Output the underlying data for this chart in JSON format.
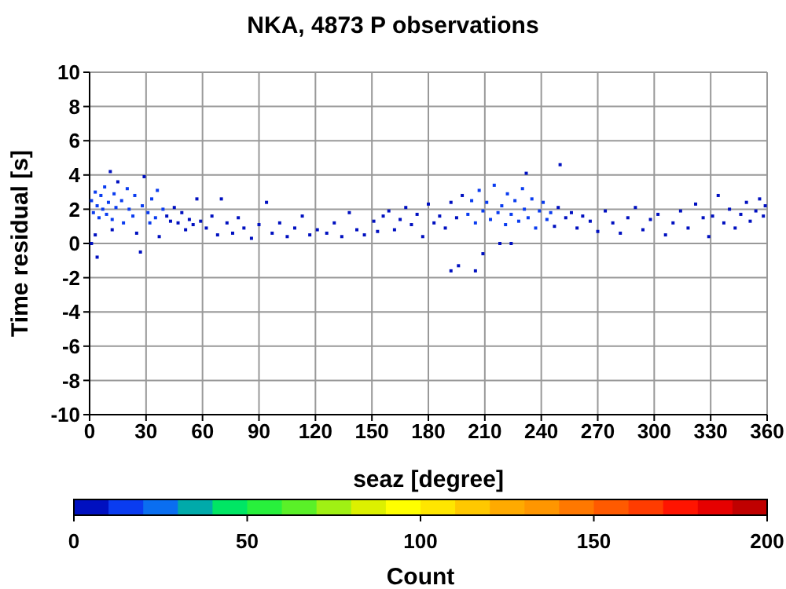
{
  "chart_data": {
    "type": "scatter",
    "title": "NKA, 4873 P observations",
    "xlabel": "seaz [degree]",
    "ylabel": "Time residual [s]",
    "clabel": "Count",
    "x": [
      1,
      2,
      3,
      4,
      5,
      6,
      7,
      8,
      9,
      10,
      11,
      12,
      13,
      14,
      3,
      4,
      1,
      15,
      12,
      17,
      18,
      20,
      21,
      23,
      24,
      25,
      27,
      28,
      29,
      31,
      32,
      33,
      35,
      36,
      37,
      39,
      41,
      43,
      45,
      47,
      49,
      51,
      53,
      55,
      57,
      59,
      62,
      65,
      68,
      70,
      73,
      76,
      79,
      82,
      86,
      90,
      94,
      97,
      101,
      105,
      109,
      113,
      117,
      121,
      126,
      130,
      134,
      138,
      142,
      146,
      151,
      153,
      156,
      159,
      162,
      165,
      168,
      171,
      174,
      177,
      180,
      183,
      186,
      189,
      192,
      192,
      196,
      195,
      198,
      201,
      203,
      205,
      205,
      207,
      209,
      209,
      211,
      213,
      215,
      217,
      218,
      219,
      221,
      222,
      224,
      224,
      226,
      228,
      230,
      231,
      232,
      233,
      235,
      237,
      239,
      241,
      243,
      245,
      247,
      250,
      249,
      253,
      256,
      259,
      262,
      266,
      270,
      274,
      278,
      282,
      286,
      290,
      294,
      298,
      302,
      306,
      310,
      314,
      318,
      322,
      326,
      329,
      331,
      334,
      337,
      340,
      343,
      346,
      349,
      351,
      354,
      356,
      358,
      359
    ],
    "values": [
      2.5,
      1.8,
      3,
      2.2,
      1.5,
      2.8,
      2,
      3.3,
      1.7,
      2.4,
      4.2,
      1.4,
      2.9,
      2.1,
      0.5,
      -0.8,
      0,
      3.6,
      0.8,
      2.5,
      1.2,
      3.2,
      2,
      1.6,
      2.8,
      0.6,
      -0.5,
      2.2,
      3.9,
      1.8,
      1.2,
      2.6,
      1.5,
      3.1,
      0.4,
      2,
      1.6,
      1.3,
      2.1,
      1.2,
      1.8,
      0.8,
      1.4,
      1.1,
      2.6,
      1.3,
      0.9,
      1.6,
      0.5,
      2.6,
      1.2,
      0.6,
      1.5,
      0.9,
      0.3,
      1.1,
      2.4,
      0.6,
      1.2,
      0.4,
      0.9,
      1.6,
      0.5,
      0.8,
      0.6,
      1.2,
      0.4,
      1.8,
      0.8,
      0.5,
      1.3,
      0.7,
      1.6,
      1.9,
      0.8,
      1.4,
      2.1,
      1.1,
      1.7,
      0.4,
      2.3,
      1.2,
      1.6,
      0.9,
      2.4,
      -1.6,
      -1.3,
      1.5,
      2.8,
      1.7,
      2.5,
      -1.6,
      1.2,
      3.1,
      -0.6,
      1.9,
      2.4,
      1.4,
      3.4,
      1.8,
      0,
      2.2,
      1.1,
      2.9,
      0,
      1.7,
      2.5,
      1.3,
      3.2,
      2,
      4.1,
      1.5,
      2.6,
      0.9,
      1.9,
      2.4,
      1.4,
      1.8,
      1,
      4.6,
      2.1,
      1.5,
      1.8,
      0.9,
      1.6,
      1.3,
      0.7,
      1.9,
      1.2,
      0.6,
      1.5,
      2.1,
      0.8,
      1.4,
      1.7,
      0.5,
      1.2,
      1.9,
      0.9,
      2.3,
      1.5,
      0.4,
      1.6,
      2.8,
      1.2,
      2,
      0.9,
      1.7,
      2.4,
      1.3,
      1.9,
      2.6,
      1.6,
      2.2
    ],
    "cvalues": [
      15,
      15,
      15,
      15,
      15,
      15,
      15,
      15,
      15,
      15,
      5,
      15,
      15,
      15,
      5,
      5,
      5,
      5,
      5,
      15,
      15,
      15,
      15,
      15,
      15,
      5,
      5,
      15,
      5,
      15,
      15,
      15,
      15,
      15,
      5,
      15,
      5,
      5,
      5,
      5,
      5,
      5,
      5,
      5,
      5,
      5,
      5,
      5,
      5,
      5,
      5,
      5,
      5,
      5,
      5,
      5,
      5,
      5,
      5,
      5,
      5,
      5,
      5,
      5,
      5,
      5,
      5,
      5,
      5,
      5,
      5,
      5,
      5,
      5,
      5,
      5,
      5,
      5,
      5,
      5,
      5,
      5,
      5,
      5,
      5,
      5,
      5,
      5,
      5,
      15,
      15,
      5,
      15,
      15,
      5,
      15,
      15,
      15,
      15,
      15,
      5,
      15,
      15,
      15,
      5,
      15,
      15,
      15,
      15,
      15,
      5,
      15,
      15,
      15,
      15,
      15,
      15,
      15,
      5,
      5,
      5,
      5,
      5,
      5,
      5,
      5,
      5,
      5,
      5,
      5,
      5,
      5,
      5,
      5,
      5,
      5,
      5,
      5,
      5,
      5,
      5,
      5,
      5,
      5,
      5,
      5,
      5,
      5,
      5,
      5,
      5,
      5,
      5,
      5
    ],
    "xlim": [
      0,
      360
    ],
    "xticks": [
      0,
      30,
      60,
      90,
      120,
      150,
      180,
      210,
      240,
      270,
      300,
      330,
      360
    ],
    "ylim": [
      -10,
      10
    ],
    "yticks": [
      -10,
      -8,
      -6,
      -4,
      -2,
      0,
      2,
      4,
      6,
      8,
      10
    ],
    "clim": [
      0,
      200
    ],
    "cticks": [
      0,
      50,
      100,
      150,
      200
    ],
    "grid": true,
    "marker": "square"
  }
}
